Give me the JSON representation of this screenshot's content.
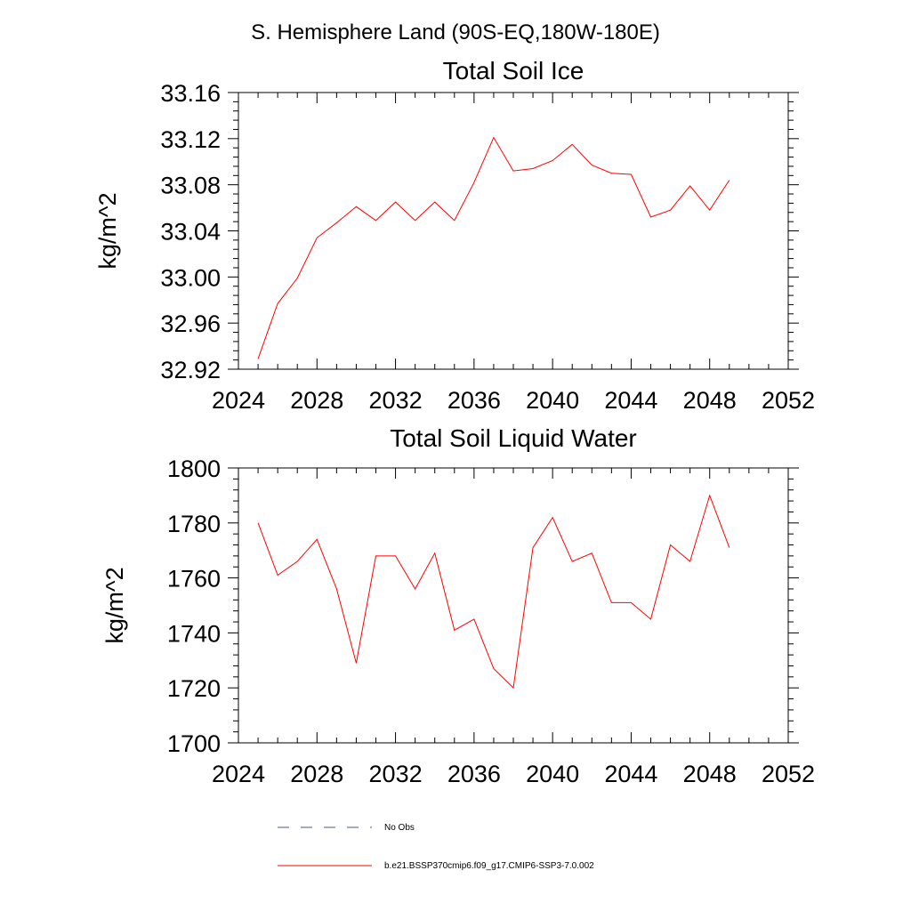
{
  "figure": {
    "main_title": "S. Hemisphere Land (90S-EQ,180W-180E)"
  },
  "chart_data": [
    {
      "type": "line",
      "title": "Total Soil Ice",
      "xlabel": "",
      "ylabel": "kg/m^2",
      "xlim": [
        2024,
        2052
      ],
      "ylim": [
        32.92,
        33.16
      ],
      "xticks": [
        2024,
        2028,
        2032,
        2036,
        2040,
        2044,
        2048,
        2052
      ],
      "xtick_labels": [
        "2024",
        "2028",
        "2032",
        "2036",
        "2040",
        "2044",
        "2048",
        "2052"
      ],
      "yticks": [
        32.92,
        32.96,
        33.0,
        33.04,
        33.08,
        33.12,
        33.16
      ],
      "ytick_labels": [
        "32.92",
        "32.96",
        "33.00",
        "33.04",
        "33.08",
        "33.12",
        "33.16"
      ],
      "grid": false,
      "series": [
        {
          "name": "b.e21.BSSP370cmip6.f09_g17.CMIP6-SSP3-7.0.002",
          "color": "#ff0000",
          "x": [
            2025,
            2026,
            2027,
            2028,
            2029,
            2030,
            2031,
            2032,
            2033,
            2034,
            2035,
            2036,
            2037,
            2038,
            2039,
            2040,
            2041,
            2042,
            2043,
            2044,
            2045,
            2046,
            2047,
            2048,
            2049
          ],
          "y": [
            32.929,
            32.977,
            32.999,
            33.034,
            33.047,
            33.061,
            33.049,
            33.065,
            33.049,
            33.065,
            33.049,
            33.082,
            33.121,
            33.092,
            33.094,
            33.101,
            33.115,
            33.097,
            33.09,
            33.089,
            33.052,
            33.058,
            33.079,
            33.058,
            33.084
          ]
        }
      ]
    },
    {
      "type": "line",
      "title": "Total Soil Liquid Water",
      "xlabel": "",
      "ylabel": "kg/m^2",
      "xlim": [
        2024,
        2052
      ],
      "ylim": [
        1700,
        1800
      ],
      "xticks": [
        2024,
        2028,
        2032,
        2036,
        2040,
        2044,
        2048,
        2052
      ],
      "xtick_labels": [
        "2024",
        "2028",
        "2032",
        "2036",
        "2040",
        "2044",
        "2048",
        "2052"
      ],
      "yticks": [
        1700,
        1720,
        1740,
        1760,
        1780,
        1800
      ],
      "ytick_labels": [
        "1700",
        "1720",
        "1740",
        "1760",
        "1780",
        "1800"
      ],
      "grid": false,
      "series": [
        {
          "name": "b.e21.BSSP370cmip6.f09_g17.CMIP6-SSP3-7.0.002",
          "color": "#ff0000",
          "x": [
            2025,
            2026,
            2027,
            2028,
            2029,
            2030,
            2031,
            2032,
            2033,
            2034,
            2035,
            2036,
            2037,
            2038,
            2039,
            2040,
            2041,
            2042,
            2043,
            2044,
            2045,
            2046,
            2047,
            2048,
            2049
          ],
          "y": [
            1780,
            1761,
            1766,
            1774,
            1756,
            1729,
            1768,
            1768,
            1756,
            1769,
            1741,
            1745,
            1727,
            1720,
            1771,
            1782,
            1766,
            1769,
            1751,
            1751,
            1745,
            1772,
            1766,
            1790,
            1771
          ]
        }
      ]
    }
  ],
  "legend": {
    "placement": "bottom",
    "items": [
      {
        "label": "No Obs",
        "color": "#4a5a8a",
        "style": "dashed"
      },
      {
        "label": "b.e21.BSSP370cmip6.f09_g17.CMIP6-SSP3-7.0.002",
        "color": "#ff0000",
        "style": "solid"
      }
    ]
  }
}
